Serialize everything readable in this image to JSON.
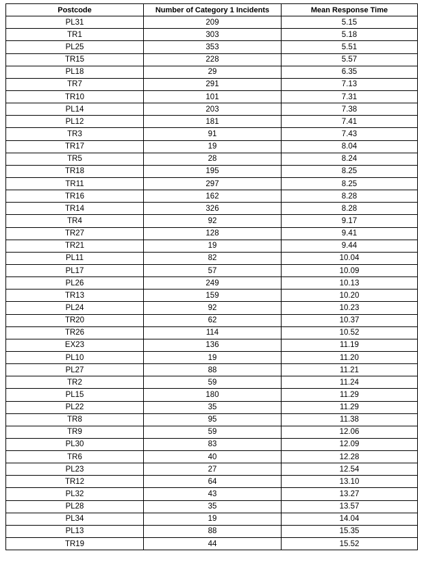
{
  "table": {
    "headers": [
      "Postcode",
      "Number of Category 1 Incidents",
      "Mean Response Time"
    ],
    "rows": [
      [
        "PL31",
        "209",
        "5.15"
      ],
      [
        "TR1",
        "303",
        "5.18"
      ],
      [
        "PL25",
        "353",
        "5.51"
      ],
      [
        "TR15",
        "228",
        "5.57"
      ],
      [
        "PL18",
        "29",
        "6.35"
      ],
      [
        "TR7",
        "291",
        "7.13"
      ],
      [
        "TR10",
        "101",
        "7.31"
      ],
      [
        "PL14",
        "203",
        "7.38"
      ],
      [
        "PL12",
        "181",
        "7.41"
      ],
      [
        "TR3",
        "91",
        "7.43"
      ],
      [
        "TR17",
        "19",
        "8.04"
      ],
      [
        "TR5",
        "28",
        "8.24"
      ],
      [
        "TR18",
        "195",
        "8.25"
      ],
      [
        "TR11",
        "297",
        "8.25"
      ],
      [
        "TR16",
        "162",
        "8.28"
      ],
      [
        "TR14",
        "326",
        "8.28"
      ],
      [
        "TR4",
        "92",
        "9.17"
      ],
      [
        "TR27",
        "128",
        "9.41"
      ],
      [
        "TR21",
        "19",
        "9.44"
      ],
      [
        "PL11",
        "82",
        "10.04"
      ],
      [
        "PL17",
        "57",
        "10.09"
      ],
      [
        "PL26",
        "249",
        "10.13"
      ],
      [
        "TR13",
        "159",
        "10.20"
      ],
      [
        "PL24",
        "92",
        "10.23"
      ],
      [
        "TR20",
        "62",
        "10.37"
      ],
      [
        "TR26",
        "114",
        "10.52"
      ],
      [
        "EX23",
        "136",
        "11.19"
      ],
      [
        "PL10",
        "19",
        "11.20"
      ],
      [
        "PL27",
        "88",
        "11.21"
      ],
      [
        "TR2",
        "59",
        "11.24"
      ],
      [
        "PL15",
        "180",
        "11.29"
      ],
      [
        "PL22",
        "35",
        "11.29"
      ],
      [
        "TR8",
        "95",
        "11.38"
      ],
      [
        "TR9",
        "59",
        "12.06"
      ],
      [
        "PL30",
        "83",
        "12.09"
      ],
      [
        "TR6",
        "40",
        "12.28"
      ],
      [
        "PL23",
        "27",
        "12.54"
      ],
      [
        "TR12",
        "64",
        "13.10"
      ],
      [
        "PL32",
        "43",
        "13.27"
      ],
      [
        "PL28",
        "35",
        "13.57"
      ],
      [
        "PL34",
        "19",
        "14.04"
      ],
      [
        "PL13",
        "88",
        "15.35"
      ],
      [
        "TR19",
        "44",
        "15.52"
      ]
    ]
  }
}
